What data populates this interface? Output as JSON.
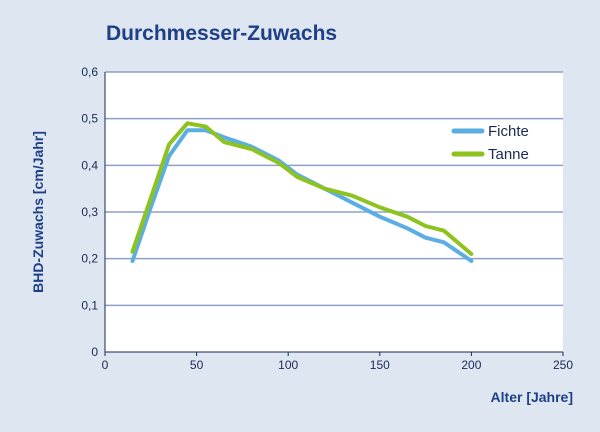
{
  "chart_data": {
    "type": "line",
    "title": "Durchmesser-Zuwachs",
    "xlabel": "Alter [Jahre]",
    "ylabel": "BHD-Zuwachs [cm/Jahr]",
    "xlim": [
      0,
      250
    ],
    "ylim": [
      0,
      0.6
    ],
    "xticks": [
      "0",
      "50",
      "100",
      "150",
      "200",
      "250"
    ],
    "yticks": [
      "0",
      "0,1",
      "0,2",
      "0,3",
      "0,4",
      "0,5",
      "0,6"
    ],
    "grid": "horizontal",
    "legend": "top-right",
    "series": [
      {
        "name": "Fichte",
        "color": "#5aaee3",
        "x": [
          15,
          25,
          35,
          45,
          55,
          65,
          80,
          95,
          105,
          120,
          135,
          150,
          165,
          175,
          185,
          200
        ],
        "y": [
          0.195,
          0.31,
          0.42,
          0.475,
          0.475,
          0.46,
          0.44,
          0.41,
          0.38,
          0.35,
          0.32,
          0.29,
          0.265,
          0.245,
          0.235,
          0.195
        ]
      },
      {
        "name": "Tanne",
        "color": "#8dc21f",
        "x": [
          15,
          25,
          35,
          45,
          55,
          65,
          80,
          95,
          105,
          120,
          135,
          150,
          165,
          175,
          185,
          200
        ],
        "y": [
          0.215,
          0.33,
          0.445,
          0.49,
          0.483,
          0.45,
          0.435,
          0.405,
          0.375,
          0.35,
          0.335,
          0.31,
          0.29,
          0.27,
          0.26,
          0.21
        ]
      }
    ]
  }
}
